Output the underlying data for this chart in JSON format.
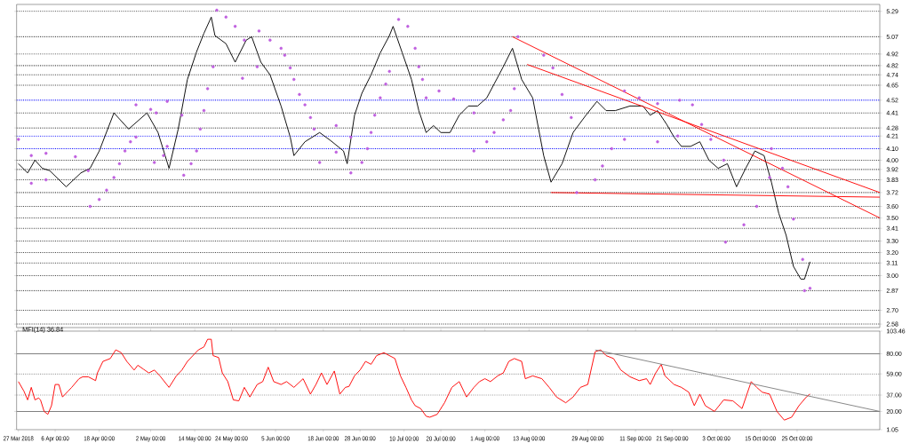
{
  "chart_data": [
    {
      "type": "line",
      "xlim": [
        "2018-03-26T12:00",
        "2018-11-16T12:00"
      ],
      "ylim": [
        2.55,
        5.35
      ],
      "yticks": [
        2.58,
        {
          "value": 2.7,
          "label": "2.70"
        },
        2.87,
        {
          "value": 3,
          "label": "3.00"
        },
        3.11,
        {
          "value": 3.2,
          "label": "3.20"
        },
        {
          "value": 3.3,
          "label": "3.30"
        },
        3.41,
        {
          "value": 3.5,
          "label": "3.50"
        },
        {
          "value": 3.6,
          "label": "3.60"
        },
        3.72,
        3.83,
        3.92,
        {
          "value": 4,
          "label": "4.00"
        },
        {
          "value": 4.1,
          "label": "4.10"
        },
        4.21,
        4.28,
        4.41,
        4.52,
        4.65,
        4.74,
        4.82,
        4.92,
        5.07,
        5.29
      ],
      "tick_labels": "y",
      "ref_lines": [
        {
          "axis": "y",
          "value": 2.58,
          "color": "#404040",
          "line_style": "dotted"
        },
        {
          "axis": "y",
          "value": 2.7,
          "color": "#404040",
          "line_style": "dotted"
        },
        {
          "axis": "y",
          "value": 2.87,
          "color": "#404040",
          "line_style": "dotted"
        },
        {
          "axis": "y",
          "value": 3,
          "color": "#404040",
          "line_style": "dotted"
        },
        {
          "axis": "y",
          "value": 3.11,
          "color": "#404040",
          "line_style": "dotted"
        },
        {
          "axis": "y",
          "value": 3.2,
          "color": "#404040",
          "line_style": "dotted"
        },
        {
          "axis": "y",
          "value": 3.3,
          "color": "#404040",
          "line_style": "dotted"
        },
        {
          "axis": "y",
          "value": 3.41,
          "color": "#404040",
          "line_style": "dotted"
        },
        {
          "axis": "y",
          "value": 3.5,
          "color": "#404040",
          "line_style": "dotted"
        },
        {
          "axis": "y",
          "value": 3.6,
          "color": "#404040",
          "line_style": "dotted"
        },
        {
          "axis": "y",
          "value": 3.72,
          "color": "#404040",
          "line_style": "dotted"
        },
        {
          "axis": "y",
          "value": 3.83,
          "color": "#404040",
          "line_style": "dotted"
        },
        {
          "axis": "y",
          "value": 3.92,
          "color": "#404040",
          "line_style": "dotted"
        },
        {
          "axis": "y",
          "value": 4,
          "color": "#404040",
          "line_style": "dotted"
        },
        {
          "axis": "y",
          "value": 4.28,
          "color": "#404040",
          "line_style": "dotted"
        },
        {
          "axis": "y",
          "value": 4.41,
          "color": "#404040",
          "line_style": "dotted"
        },
        {
          "axis": "y",
          "value": 4.65,
          "color": "#404040",
          "line_style": "dotted"
        },
        {
          "axis": "y",
          "value": 4.74,
          "color": "#404040",
          "line_style": "dotted"
        },
        {
          "axis": "y",
          "value": 4.82,
          "color": "#404040",
          "line_style": "dotted"
        },
        {
          "axis": "y",
          "value": 4.92,
          "color": "#404040",
          "line_style": "dotted"
        },
        {
          "axis": "y",
          "value": 5.07,
          "color": "#404040",
          "line_style": "dotted"
        },
        {
          "axis": "y",
          "value": 5.29,
          "color": "#404040",
          "line_style": "dotted"
        },
        {
          "axis": "y",
          "value": 4.52,
          "color": "#0000ff",
          "line_style": "dotted"
        },
        {
          "axis": "y",
          "value": 4.21,
          "color": "#0000ff",
          "line_style": "dotted"
        },
        {
          "axis": "y",
          "value": 4.1,
          "color": "#0000ff",
          "line_style": "dotted"
        }
      ],
      "series": [
        {
          "color": "#000000",
          "x": [
            "2018-03-27",
            "2018-03-29T12:00",
            "2018-03-31T12:00",
            "2018-04-02T12:00",
            "2018-04-04T12:00",
            "2018-04-09",
            "2018-04-13",
            "2018-04-15T12:00",
            "2018-04-18",
            "2018-04-22",
            "2018-04-26",
            "2018-05-01",
            "2018-05-04",
            "2018-05-07",
            "2018-05-09T12:00",
            "2018-05-12",
            "2018-05-14T12:00",
            "2018-05-16T12:00",
            "2018-05-18T12:00",
            "2018-05-19T12:00",
            "2018-05-22T12:00",
            "2018-05-25",
            "2018-05-28",
            "2018-05-29T12:00",
            "2018-06-01",
            "2018-06-03T12:00",
            "2018-06-06T12:00",
            "2018-06-09",
            "2018-06-10",
            "2018-06-13",
            "2018-06-17",
            "2018-06-20",
            "2018-06-23T12:00",
            "2018-06-24T12:00",
            "2018-06-26T12:00",
            "2018-06-28T12:00",
            "2018-07-01",
            "2018-07-03T12:00",
            "2018-07-06",
            "2018-07-07",
            "2018-07-09T12:00",
            "2018-07-12",
            "2018-07-14",
            "2018-07-16",
            "2018-07-18",
            "2018-07-20",
            "2018-07-22T12:00",
            "2018-07-25",
            "2018-07-27T12:00",
            "2018-07-30",
            "2018-08-01T12:00",
            "2018-08-03T12:00",
            "2018-08-06",
            "2018-08-08T12:00",
            "2018-08-11",
            "2018-08-14",
            "2018-08-17",
            "2018-08-19",
            "2018-08-22",
            "2018-08-25",
            "2018-08-28T12:00",
            "2018-08-31T12:00",
            "2018-09-03",
            "2018-09-05T12:00",
            "2018-09-09T12:00",
            "2018-09-13",
            "2018-09-15",
            "2018-09-17",
            "2018-09-19T12:00",
            "2018-09-21T12:00",
            "2018-09-23T12:00",
            "2018-09-26",
            "2018-09-28T12:00",
            "2018-10-01",
            "2018-10-03T12:00",
            "2018-10-06",
            "2018-10-08T12:00",
            "2018-10-11",
            "2018-10-13T12:00",
            "2018-10-16",
            "2018-10-18",
            "2018-10-20",
            "2018-10-22",
            "2018-10-24",
            "2018-10-26",
            "2018-10-27",
            "2018-10-28T12:00"
          ],
          "values": [
            3.97,
            3.89,
            4.0,
            3.93,
            3.91,
            3.77,
            3.89,
            3.93,
            4.08,
            4.41,
            4.27,
            4.41,
            4.24,
            3.93,
            4.27,
            4.7,
            4.94,
            5.1,
            5.24,
            5.08,
            5.01,
            4.85,
            5.04,
            5.07,
            4.85,
            4.74,
            4.47,
            4.2,
            4.04,
            4.16,
            4.24,
            4.17,
            4.08,
            3.97,
            4.39,
            4.58,
            4.74,
            4.93,
            5.08,
            5.16,
            4.93,
            4.7,
            4.43,
            4.24,
            4.3,
            4.24,
            4.24,
            4.39,
            4.47,
            4.47,
            4.54,
            4.66,
            4.81,
            4.97,
            4.7,
            4.54,
            4.04,
            3.81,
            3.97,
            4.24,
            4.39,
            4.51,
            4.43,
            4.43,
            4.47,
            4.47,
            4.39,
            4.43,
            4.31,
            4.2,
            4.12,
            4.12,
            4.16,
            4.0,
            3.93,
            3.97,
            3.77,
            3.93,
            4.08,
            4.04,
            3.81,
            3.54,
            3.35,
            3.08,
            2.97,
            2.97,
            3.12
          ]
        },
        {
          "type": "scatter",
          "marker": "circle",
          "color": "#bf5fdf",
          "x": [
            "2018-03-27",
            "2018-03-30T12:00",
            "2018-03-30T12:00",
            "2018-04-03T12:00",
            "2018-04-03T12:00",
            "2018-04-11T12:00",
            "2018-04-15",
            "2018-04-15T12:00",
            "2018-04-18",
            "2018-04-20",
            "2018-04-22",
            "2018-04-23T12:00",
            "2018-04-25",
            "2018-04-26T12:00",
            "2018-04-28",
            "2018-04-28",
            "2018-05-02",
            "2018-05-03T12:00",
            "2018-05-03",
            "2018-05-05T12:00",
            "2018-05-06T12:00",
            "2018-05-06T12:00",
            "2018-05-10T12:00",
            "2018-05-11",
            "2018-05-13",
            "2018-05-14T12:00",
            "2018-05-15T12:00",
            "2018-05-16T12:00",
            "2018-05-17T12:00",
            "2018-05-19",
            "2018-05-20",
            "2018-05-22T12:00",
            "2018-05-25",
            "2018-05-27T12:00",
            "2018-05-27",
            "2018-05-31",
            "2018-05-31T12:00",
            "2018-06-03T12:00",
            "2018-06-06T12:00",
            "2018-06-07T12:00",
            "2018-06-09",
            "2018-06-10",
            "2018-06-11T12:00",
            "2018-06-13",
            "2018-06-14T12:00",
            "2018-06-15T12:00",
            "2018-06-17",
            "2018-06-21T12:00",
            "2018-06-21T12:00",
            "2018-06-25T12:00",
            "2018-06-25T12:00",
            "2018-06-28T12:00",
            "2018-06-30",
            "2018-07-01",
            "2018-07-02",
            "2018-07-03T12:00",
            "2018-07-05",
            "2018-07-06",
            "2018-07-08T12:00",
            "2018-07-11",
            "2018-07-13",
            "2018-07-14",
            "2018-07-15",
            "2018-07-16",
            "2018-07-19T12:00",
            "2018-07-23T12:00",
            "2018-07-29",
            "2018-07-29",
            "2018-08-01T12:00",
            "2018-08-03T12:00",
            "2018-08-06",
            "2018-08-08",
            "2018-08-09",
            "2018-08-10",
            "2018-08-17",
            "2018-08-19T12:00",
            "2018-08-22",
            "2018-08-24T12:00",
            "2018-08-26",
            "2018-08-31",
            "2018-09-02",
            "2018-09-04T12:00",
            "2018-09-08",
            "2018-09-08",
            "2018-09-12",
            "2018-09-17",
            "2018-09-17",
            "2018-09-22T12:00",
            "2018-09-23",
            "2018-09-26T12:00",
            "2018-09-29",
            "2018-10-01T12:00",
            "2018-10-05",
            "2018-10-05T12:00",
            "2018-10-10T12:00",
            "2018-10-14",
            "2018-10-17T12:00",
            "2018-10-18",
            "2018-10-21",
            "2018-10-22T12:00",
            "2018-10-24",
            "2018-10-26T12:00",
            "2018-10-27",
            "2018-10-28T12:00"
          ],
          "values": [
            4.18,
            4.04,
            3.8,
            3.83,
            4.06,
            4.03,
            3.91,
            3.6,
            3.66,
            3.74,
            3.85,
            3.97,
            4.08,
            4.16,
            4.2,
            4.48,
            4.44,
            4.41,
            3.98,
            4.04,
            4.12,
            4.51,
            4.39,
            3.87,
            3.97,
            4.08,
            4.27,
            4.43,
            4.62,
            4.81,
            5.3,
            5.24,
            5.16,
            5.04,
            4.71,
            4.81,
            5.12,
            5.04,
            4.97,
            4.91,
            4.8,
            4.7,
            4.57,
            4.48,
            4.37,
            4.27,
            3.98,
            4.07,
            4.3,
            4.2,
            3.89,
            3.98,
            4.1,
            4.24,
            4.39,
            4.54,
            4.66,
            4.77,
            5.22,
            5.16,
            4.97,
            4.81,
            4.7,
            4.54,
            4.6,
            4.53,
            4.41,
            4.08,
            4.16,
            4.24,
            4.35,
            4.43,
            4.62,
            5.07,
            4.91,
            4.8,
            4.57,
            4.37,
            3.72,
            3.83,
            3.95,
            4.1,
            4.18,
            4.6,
            4.54,
            4.49,
            4.16,
            4.21,
            4.52,
            4.48,
            4.31,
            4.18,
            4.0,
            3.29,
            3.44,
            3.6,
            3.85,
            4.1,
            3.93,
            3.77,
            3.49,
            3.14,
            2.87,
            2.89
          ]
        },
        {
          "color": "#ff0000",
          "x": [
            "2018-08-08T12:00",
            "2018-11-16T12:00"
          ],
          "values": [
            5.07,
            3.5
          ]
        },
        {
          "color": "#ff0000",
          "x": [
            "2018-08-12T12:00",
            "2018-11-16T12:00"
          ],
          "values": [
            4.83,
            3.72
          ]
        },
        {
          "color": "#ff0000",
          "x": [
            "2018-08-19",
            "2018-11-16T12:00"
          ],
          "values": [
            3.72,
            3.68
          ]
        }
      ]
    },
    {
      "type": "line",
      "title": "MFI(14) 36.84",
      "xlim": [
        "2018-03-26T12:00",
        "2018-11-16T12:00"
      ],
      "ylim": [
        1.05,
        103.46
      ],
      "xticks": [
        {
          "value": "2018-03-27",
          "label": "27 Mar 2018"
        },
        {
          "value": "2018-04-06",
          "label": "6 Apr 00:00"
        },
        {
          "value": "2018-04-18",
          "label": "18 Apr 00:00"
        },
        {
          "value": "2018-05-02",
          "label": "2 May 00:00"
        },
        {
          "value": "2018-05-14",
          "label": "14 May 00:00"
        },
        {
          "value": "2018-05-24",
          "label": "24 May 00:00"
        },
        {
          "value": "2018-06-05",
          "label": "5 Jun 00:00"
        },
        {
          "value": "2018-06-18",
          "label": "18 Jun 00:00"
        },
        {
          "value": "2018-06-28",
          "label": "28 Jun 00:00"
        },
        {
          "value": "2018-07-10",
          "label": "10 Jul 00:00"
        },
        {
          "value": "2018-07-20",
          "label": "20 Jul 00:00"
        },
        {
          "value": "2018-08-01",
          "label": "1 Aug 00:00"
        },
        {
          "value": "2018-08-13",
          "label": "13 Aug 00:00"
        },
        {
          "value": "2018-08-29",
          "label": "29 Aug 00:00"
        },
        {
          "value": "2018-09-11",
          "label": "11 Sep 00:00"
        },
        {
          "value": "2018-09-21",
          "label": "21 Sep 00:00"
        },
        {
          "value": "2018-10-03",
          "label": "3 Oct 00:00"
        },
        {
          "value": "2018-10-15",
          "label": "15 Oct 00:00"
        },
        {
          "value": "2018-10-25",
          "label": "25 Oct 00:00"
        }
      ],
      "yticks": [
        1.05,
        {
          "value": 20,
          "label": "20.00"
        },
        {
          "value": 37,
          "label": "37.00"
        },
        {
          "value": 59,
          "label": "59.00"
        },
        {
          "value": 80,
          "label": "80.00"
        },
        103.46
      ],
      "ref_lines": [
        {
          "axis": "y",
          "value": 80,
          "color": "#808080",
          "line_style": "solid"
        },
        {
          "axis": "y",
          "value": 20,
          "color": "#808080",
          "line_style": "solid"
        },
        {
          "axis": "y",
          "value": 59,
          "color": "#808080",
          "line_style": "dotted"
        },
        {
          "axis": "y",
          "value": 37,
          "color": "#808080",
          "line_style": "dotted"
        }
      ],
      "series": [
        {
          "color": "#ff0000",
          "x": [
            "2018-03-27",
            "2018-03-28T12:00",
            "2018-03-29T12:00",
            "2018-03-30T12:00",
            "2018-03-31T12:00",
            "2018-04-01T12:00",
            "2018-04-02",
            "2018-04-03",
            "2018-04-04",
            "2018-04-05",
            "2018-04-06",
            "2018-04-07",
            "2018-04-08",
            "2018-04-09T12:00",
            "2018-04-10T12:00",
            "2018-04-12T12:00",
            "2018-04-13T12:00",
            "2018-04-15",
            "2018-04-17",
            "2018-04-17T12:00",
            "2018-04-19",
            "2018-04-21",
            "2018-04-22T12:00",
            "2018-04-24",
            "2018-04-25T12:00",
            "2018-04-27T12:00",
            "2018-04-28T12:00",
            "2018-04-30",
            "2018-05-01T12:00",
            "2018-05-03",
            "2018-05-04T12:00",
            "2018-05-07",
            "2018-05-09",
            "2018-05-10T12:00",
            "2018-05-12",
            "2018-05-13T12:00",
            "2018-05-15",
            "2018-05-16T12:00",
            "2018-05-17T12:00",
            "2018-05-18T12:00",
            "2018-05-19",
            "2018-05-20T12:00",
            "2018-05-21T12:00",
            "2018-05-23",
            "2018-05-24T12:00",
            "2018-05-26",
            "2018-05-27T12:00",
            "2018-05-29",
            "2018-05-31",
            "2018-06-01T12:00",
            "2018-06-03",
            "2018-06-04T12:00",
            "2018-06-06T12:00",
            "2018-06-08",
            "2018-06-10",
            "2018-06-12T12:00",
            "2018-06-14T12:00",
            "2018-06-16",
            "2018-06-17T12:00",
            "2018-06-19",
            "2018-06-21",
            "2018-06-22T12:00",
            "2018-06-24",
            "2018-06-25",
            "2018-06-26T12:00",
            "2018-06-28",
            "2018-06-29T12:00",
            "2018-07-01",
            "2018-07-02T12:00",
            "2018-07-04T12:00",
            "2018-07-06",
            "2018-07-07T12:00",
            "2018-07-09",
            "2018-07-10T12:00",
            "2018-07-12",
            "2018-07-13",
            "2018-07-14T12:00",
            "2018-07-16",
            "2018-07-17",
            "2018-07-19",
            "2018-07-21",
            "2018-07-23",
            "2018-07-25",
            "2018-07-27",
            "2018-07-29",
            "2018-07-30T12:00",
            "2018-08-01",
            "2018-08-02T12:00",
            "2018-08-04T12:00",
            "2018-08-06",
            "2018-08-07T12:00",
            "2018-08-09",
            "2018-08-11",
            "2018-08-12",
            "2018-08-14",
            "2018-08-16T12:00",
            "2018-08-18T12:00",
            "2018-08-20T12:00",
            "2018-08-23",
            "2018-08-25",
            "2018-08-27",
            "2018-08-29",
            "2018-08-31",
            "2018-09-01T12:00",
            "2018-09-03",
            "2018-09-05",
            "2018-09-07",
            "2018-09-09T12:00",
            "2018-09-12",
            "2018-09-14",
            "2018-09-15",
            "2018-09-16T12:00",
            "2018-09-18",
            "2018-09-19",
            "2018-09-21T12:00",
            "2018-09-23T12:00",
            "2018-09-25T12:00",
            "2018-09-27",
            "2018-09-28T12:00",
            "2018-09-30",
            "2018-10-02T12:00",
            "2018-10-05",
            "2018-10-07T12:00",
            "2018-10-10",
            "2018-10-12T12:00",
            "2018-10-14",
            "2018-10-15T12:00",
            "2018-10-17T12:00",
            "2018-10-19T12:00",
            "2018-10-21T12:00",
            "2018-10-23T12:00",
            "2018-10-25T12:00",
            "2018-10-27T12:00",
            "2018-10-28T12:00"
          ],
          "values": [
            51,
            41,
            32,
            45,
            32,
            34,
            32,
            20,
            17,
            26,
            48,
            48,
            35,
            41,
            45,
            54,
            56,
            56,
            52,
            60,
            72,
            75,
            84,
            81,
            72,
            63,
            68,
            64,
            60,
            63,
            57,
            45,
            57,
            63,
            72,
            78,
            84,
            87,
            95,
            95,
            78,
            76,
            60,
            51,
            32,
            31,
            45,
            35,
            48,
            51,
            66,
            51,
            48,
            51,
            45,
            54,
            38,
            48,
            60,
            48,
            62,
            38,
            45,
            46,
            57,
            63,
            72,
            69,
            78,
            81,
            78,
            75,
            57,
            45,
            32,
            26,
            23,
            15,
            14,
            17,
            29,
            45,
            51,
            35,
            45,
            51,
            54,
            51,
            57,
            60,
            72,
            75,
            72,
            54,
            57,
            54,
            45,
            35,
            29,
            35,
            45,
            48,
            82,
            84,
            78,
            75,
            63,
            56,
            52,
            54,
            48,
            60,
            69,
            57,
            48,
            45,
            40,
            26,
            38,
            26,
            20,
            32,
            31,
            23,
            51,
            45,
            40,
            38,
            20,
            11,
            14,
            26,
            35,
            38
          ]
        },
        {
          "color": "#808080",
          "x": [
            "2018-08-31",
            "2018-11-16T12:00"
          ],
          "values": [
            84,
            20
          ]
        }
      ]
    }
  ]
}
